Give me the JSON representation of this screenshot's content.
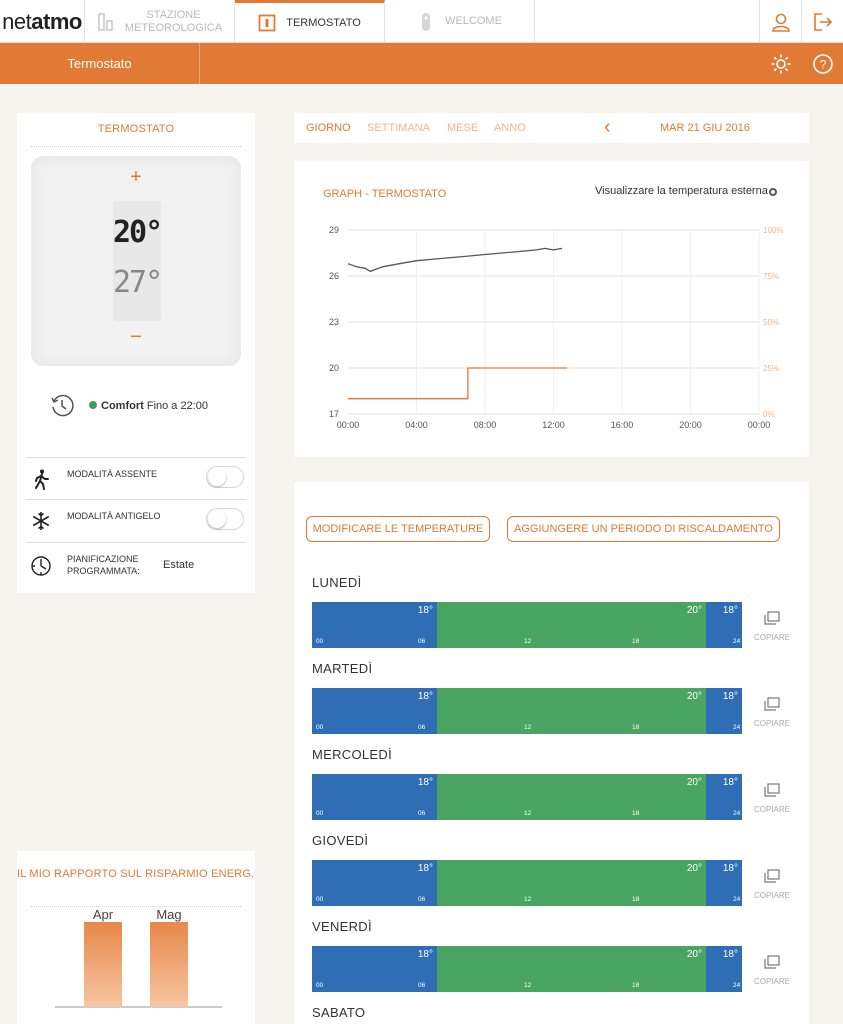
{
  "brand": {
    "net": "net",
    "atmo": "atmo"
  },
  "nav": {
    "tabs": [
      {
        "label": "STAZIONE METEOROLOGICA",
        "line1": "STAZIONE",
        "line2": "METEOROLOGICA"
      },
      {
        "label": "TERMOSTATO"
      },
      {
        "label": "WELCOME"
      }
    ]
  },
  "subheader": {
    "title": "Termostato"
  },
  "thermostat": {
    "title": "TERMOSTATO",
    "plus": "+",
    "minus": "−",
    "setpoint": "20°",
    "current": "27°",
    "mode_name": "Comfort",
    "mode_until": "Fino a 22:00",
    "away_label": "MODALITÀ ASSENTE",
    "frost_label": "MODALITÀ ANTIGELO",
    "schedule_label_1": "PIANIFICAZIONE",
    "schedule_label_2": "PROGRAMMATA:",
    "schedule_value": "Estate"
  },
  "report": {
    "title": "IL MIO RAPPORTO SUL RISPARMIO ENERG...",
    "bars": [
      {
        "label": "Apr",
        "value": 85
      },
      {
        "label": "Mag",
        "value": 85
      }
    ]
  },
  "period": {
    "day": "GIORNO",
    "week": "SETTIMANA",
    "month": "MESE",
    "year": "ANNO",
    "prev": "‹",
    "date": "MAR 21 GIU 2016"
  },
  "graph": {
    "title": "GRAPH -  TERMOSTATO",
    "ext_label": "Visualizzare la temperatura esterna"
  },
  "chart_data": {
    "type": "line",
    "title": "GRAPH -  TERMOSTATO",
    "x_ticks": [
      "00:00",
      "04:00",
      "08:00",
      "12:00",
      "16:00",
      "20:00",
      "00:00"
    ],
    "y_ticks_left": [
      "29",
      "26",
      "23",
      "20",
      "17"
    ],
    "y_ticks_right": [
      "100%",
      "75%",
      "50%",
      "25%",
      "0%"
    ],
    "ylim": [
      17,
      29
    ],
    "xlim_hours": [
      0,
      24
    ],
    "series": [
      {
        "color": "#555555",
        "x": [
          0,
          0.5,
          1.0,
          1.3,
          2.0,
          3.0,
          4.0,
          5.0,
          6.0,
          7.0,
          8.0,
          9.0,
          10.0,
          11.0,
          11.5,
          12.0,
          12.5
        ],
        "y": [
          26.8,
          26.6,
          26.5,
          26.3,
          26.6,
          26.8,
          27.0,
          27.1,
          27.2,
          27.3,
          27.4,
          27.5,
          27.6,
          27.7,
          27.8,
          27.7,
          27.8
        ]
      },
      {
        "color": "#e07a34",
        "x": [
          0,
          7.0,
          7.0,
          12.8
        ],
        "y": [
          18,
          18,
          20,
          20
        ]
      }
    ]
  },
  "schedule": {
    "btn_edit": "MODIFICARE LE TEMPERATURE",
    "btn_add": "AGGIUNGERE UN PERIODO DI RISCALDAMENTO",
    "copy_label": "COPIARE",
    "ticks": [
      "00",
      "06",
      "12",
      "18",
      "24"
    ],
    "days": [
      {
        "name": "LUNEDÌ",
        "t1": "18°",
        "t2": "20°",
        "t3": "18°"
      },
      {
        "name": "MARTEDÌ",
        "t1": "18°",
        "t2": "20°",
        "t3": "18°"
      },
      {
        "name": "MERCOLEDÌ",
        "t1": "18°",
        "t2": "20°",
        "t3": "18°"
      },
      {
        "name": "GIOVEDÌ",
        "t1": "18°",
        "t2": "20°",
        "t3": "18°"
      },
      {
        "name": "VENERDÌ",
        "t1": "18°",
        "t2": "20°",
        "t3": "18°"
      },
      {
        "name": "SABATO"
      }
    ]
  },
  "colors": {
    "accent": "#e07a34",
    "comfort": "#3c9d5a",
    "cold": "#2f6db5",
    "warm": "#4aa462"
  }
}
